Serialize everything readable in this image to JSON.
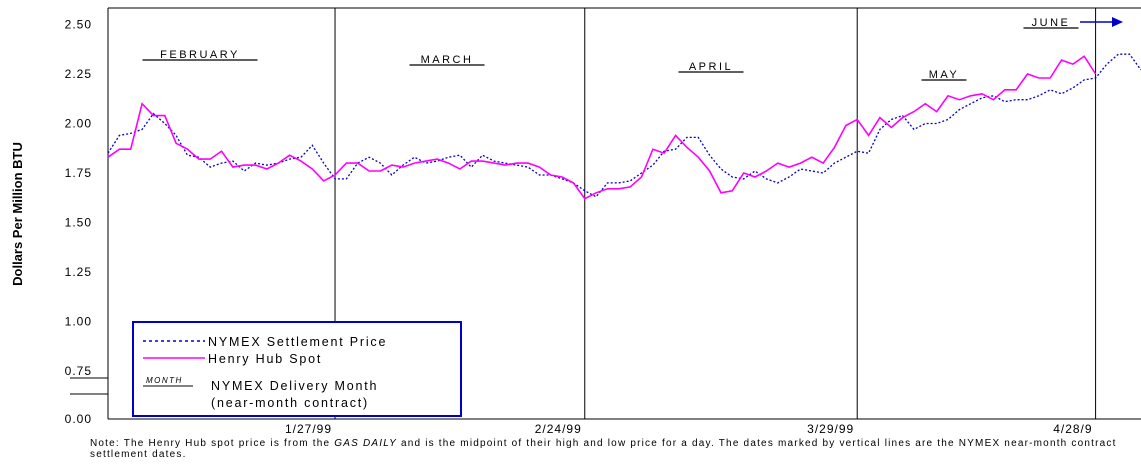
{
  "chart_data": {
    "type": "line",
    "title": "",
    "xlabel": "",
    "ylabel": "Dollars Per Million BTU",
    "ylim": [
      0,
      2.5
    ],
    "yticks": [
      "0.00",
      "0.75",
      "1.00",
      "1.25",
      "1.50",
      "1.75",
      "2.00",
      "2.25",
      "2.50"
    ],
    "x_ticks": [
      "1/27/99",
      "2/24/99",
      "3/29/99",
      "4/28/9"
    ],
    "months": [
      "FEBRUARY",
      "MARCH",
      "APRIL",
      "MAY",
      "JUNE"
    ],
    "series": [
      {
        "name": "NYMEX Settlement Price",
        "color": "#0000CC",
        "style": "dotted",
        "values": [
          1.85,
          1.94,
          1.95,
          1.97,
          2.05,
          2.0,
          1.94,
          1.84,
          1.83,
          1.78,
          1.8,
          1.81,
          1.76,
          1.8,
          1.79,
          1.8,
          1.82,
          1.83,
          1.89,
          1.8,
          1.72,
          1.72,
          1.8,
          1.83,
          1.8,
          1.74,
          1.79,
          1.83,
          1.8,
          1.81,
          1.83,
          1.84,
          1.78,
          1.84,
          1.81,
          1.8,
          1.79,
          1.78,
          1.74,
          1.74,
          1.72,
          1.7,
          1.66,
          1.63,
          1.7,
          1.7,
          1.71,
          1.75,
          1.79,
          1.86,
          1.87,
          1.93,
          1.93,
          1.84,
          1.77,
          1.73,
          1.72,
          1.76,
          1.72,
          1.7,
          1.73,
          1.77,
          1.76,
          1.75,
          1.8,
          1.83,
          1.86,
          1.85,
          1.97,
          2.02,
          2.04,
          1.97,
          2.0,
          2.0,
          2.02,
          2.07,
          2.1,
          2.13,
          2.14,
          2.11,
          2.12,
          2.12,
          2.14,
          2.17,
          2.15,
          2.18,
          2.22,
          2.23,
          2.3,
          2.35,
          2.35,
          2.27
        ]
      },
      {
        "name": "Henry Hub Spot",
        "color": "#FF00FF",
        "style": "solid",
        "values": [
          1.83,
          1.87,
          1.87,
          2.1,
          2.04,
          2.04,
          1.9,
          1.87,
          1.82,
          1.82,
          1.86,
          1.78,
          1.79,
          1.79,
          1.77,
          1.8,
          1.84,
          1.81,
          1.77,
          1.71,
          1.74,
          1.8,
          1.8,
          1.76,
          1.76,
          1.79,
          1.78,
          1.8,
          1.81,
          1.82,
          1.8,
          1.77,
          1.81,
          1.81,
          1.8,
          1.79,
          1.8,
          1.8,
          1.78,
          1.74,
          1.73,
          1.7,
          1.62,
          1.65,
          1.67,
          1.67,
          1.68,
          1.73,
          1.87,
          1.85,
          1.94,
          1.88,
          1.83,
          1.76,
          1.65,
          1.66,
          1.75,
          1.73,
          1.76,
          1.8,
          1.78,
          1.8,
          1.83,
          1.8,
          1.88,
          1.99,
          2.02,
          1.94,
          2.03,
          1.98,
          2.03,
          2.06,
          2.1,
          2.06,
          2.14,
          2.12,
          2.14,
          2.15,
          2.12,
          2.17,
          2.17,
          2.25,
          2.23,
          2.23,
          2.32,
          2.3,
          2.34,
          2.25
        ]
      }
    ],
    "legend": {
      "placement": "bottom-left",
      "delivery_month_sample": "MONTH",
      "delivery_month_label_1": "NYMEX Delivery Month",
      "delivery_month_label_2": "(near-month contract)"
    }
  },
  "note": {
    "prefix": "Note: The Henry Hub spot price is from the ",
    "source": "GAS DAILY",
    "rest": " and is the midpoint of their high and low price for a day. The dates marked by vertical lines are the NYMEX near-month contract settlement dates."
  }
}
